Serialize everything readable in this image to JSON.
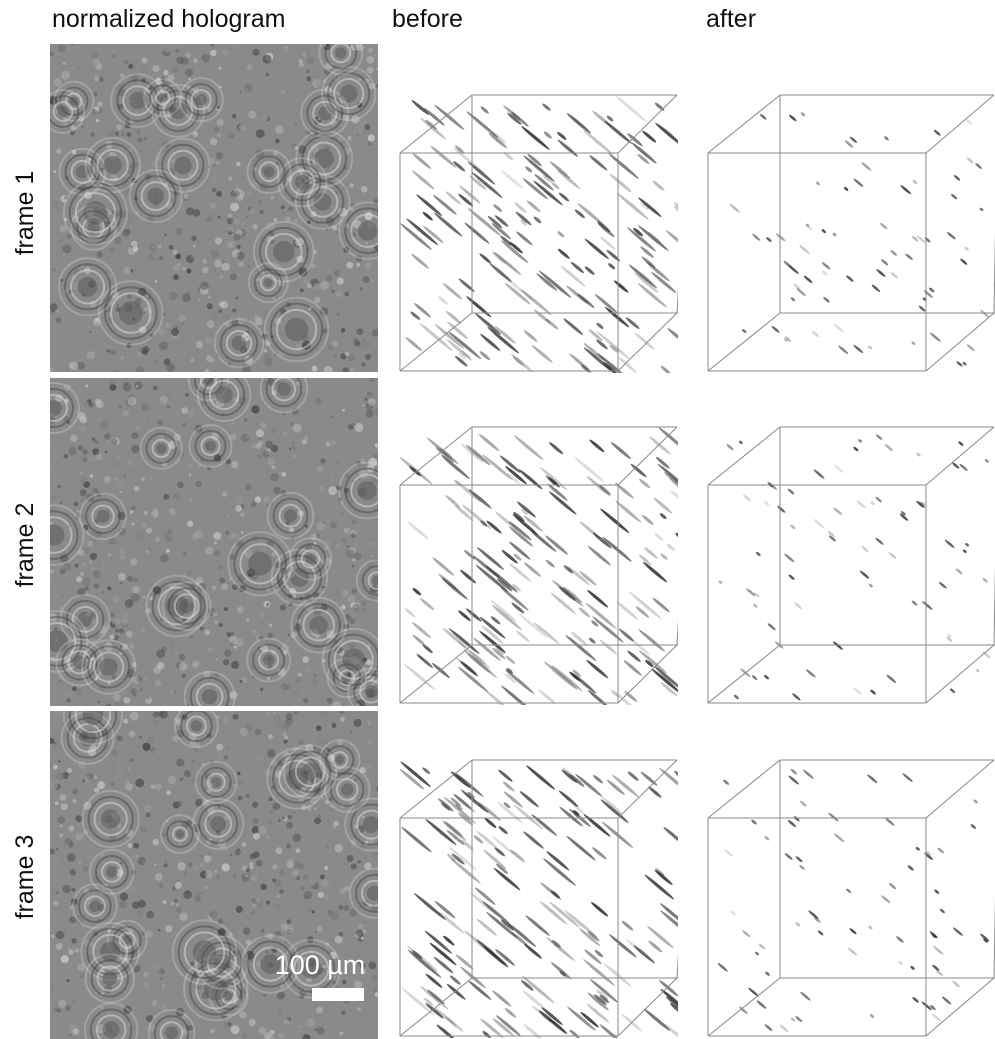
{
  "headers": {
    "hologram": "normalized hologram",
    "before": "before",
    "after": "after"
  },
  "rows": [
    {
      "label": "frame 1"
    },
    {
      "label": "frame 2"
    },
    {
      "label": "frame 3"
    }
  ],
  "scale_bar": {
    "label": "100 µm"
  },
  "colors": {
    "background": "#ffffff",
    "hologram_gray": "#8a8a8a",
    "particles": "#333333",
    "cube_edges": "#888888"
  }
}
